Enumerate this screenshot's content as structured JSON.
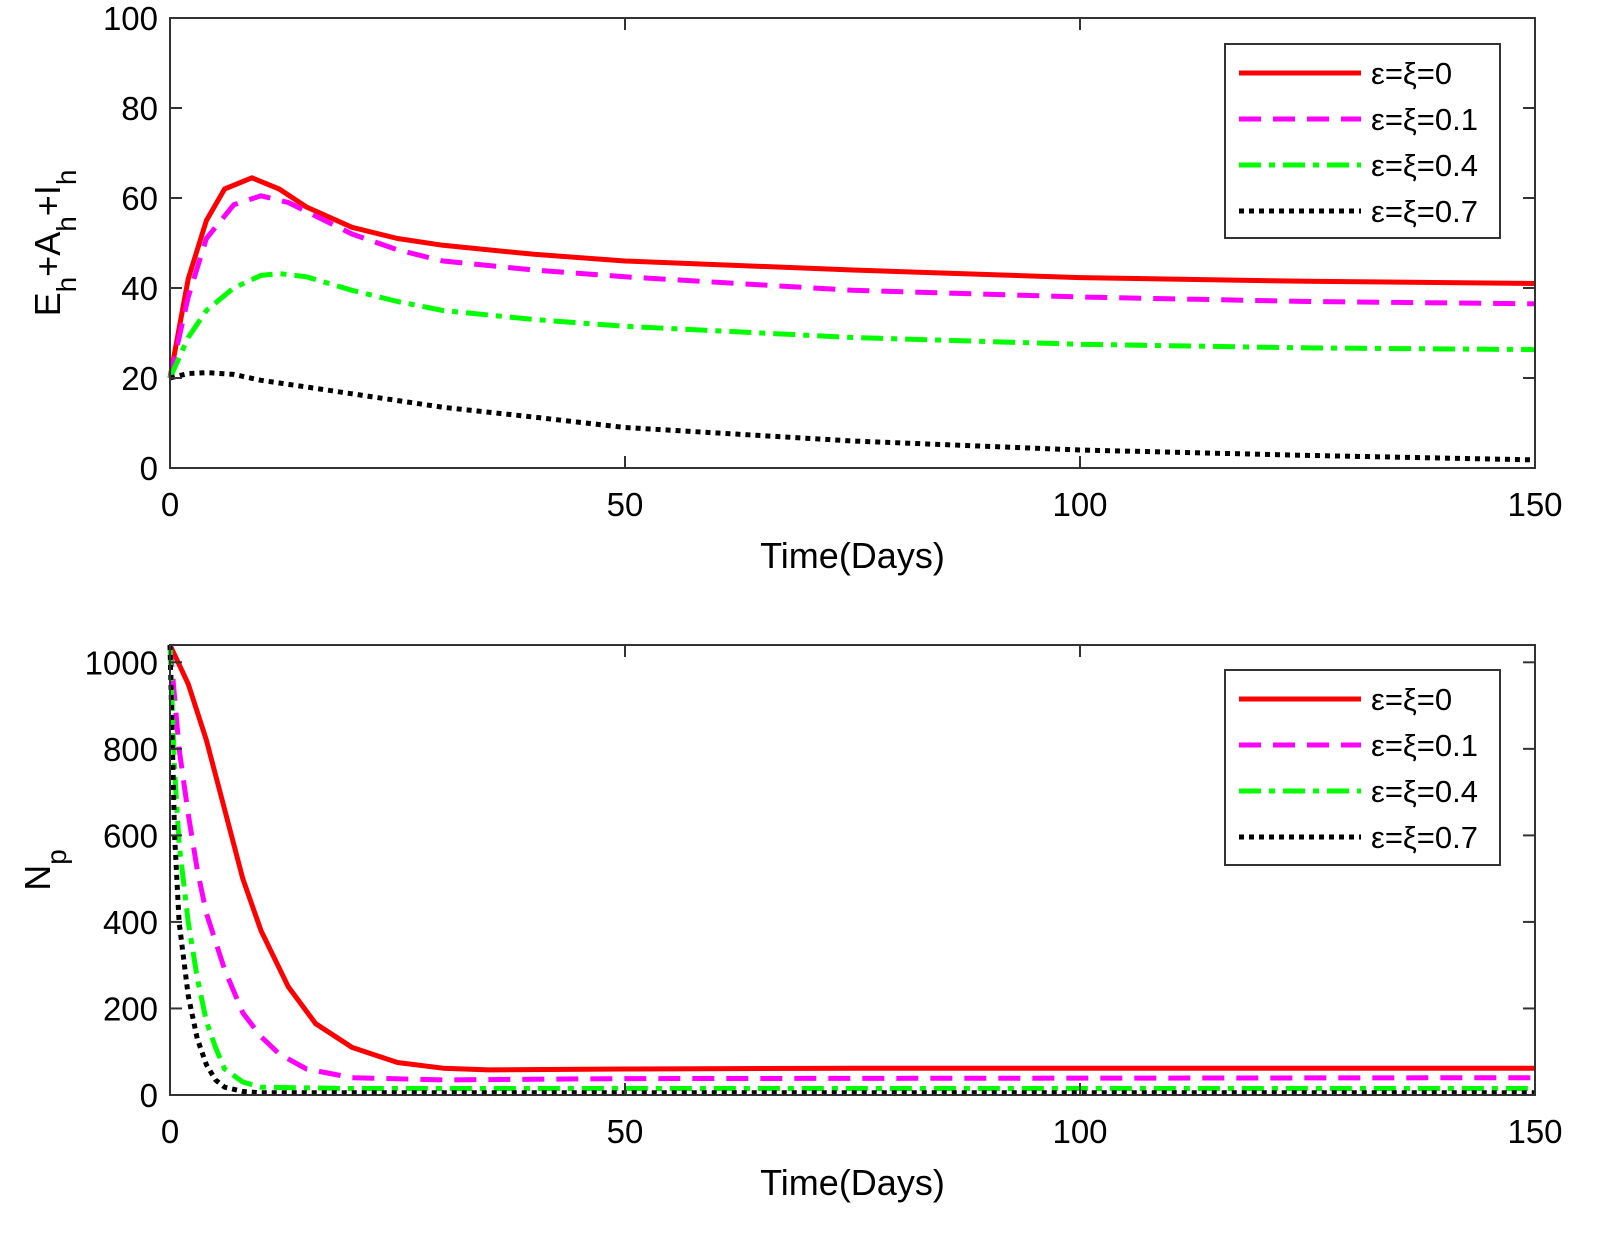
{
  "chart_data": [
    {
      "type": "line",
      "xlabel": "Time(Days)",
      "ylabel": "E_h+A_h+I_h",
      "xlim": [
        0,
        150
      ],
      "ylim": [
        0,
        100
      ],
      "xticks": [
        0,
        50,
        100,
        150
      ],
      "yticks": [
        0,
        20,
        40,
        60,
        80,
        100
      ],
      "grid": false,
      "legend_placement": "top-right",
      "series": [
        {
          "name": "ε=ξ=0",
          "color": "#ff0000",
          "style": "solid",
          "x": [
            0,
            2,
            4,
            6,
            9,
            12,
            15,
            20,
            25,
            30,
            40,
            50,
            75,
            100,
            125,
            150
          ],
          "y": [
            20,
            42,
            55,
            62,
            64.5,
            62,
            58,
            53.5,
            51,
            49.5,
            47.5,
            46,
            44,
            42.3,
            41.5,
            41
          ]
        },
        {
          "name": "ε=ξ=0.1",
          "color": "#ff00ff",
          "style": "dashed",
          "x": [
            0,
            2,
            4,
            7,
            10,
            13,
            17,
            20,
            25,
            30,
            40,
            50,
            75,
            100,
            125,
            150
          ],
          "y": [
            20,
            38,
            51,
            58.5,
            60.5,
            59,
            55,
            52,
            48.5,
            46,
            44,
            42.5,
            39.5,
            38,
            37,
            36.5
          ]
        },
        {
          "name": "ε=ξ=0.4",
          "color": "#00ff00",
          "style": "dashdot",
          "x": [
            0,
            2,
            4,
            7,
            10,
            12,
            15,
            20,
            25,
            30,
            40,
            50,
            75,
            100,
            125,
            150
          ],
          "y": [
            20,
            29,
            35,
            40,
            42.8,
            43.2,
            42.5,
            39.5,
            37,
            35,
            33,
            31.5,
            29,
            27.5,
            26.7,
            26.3
          ]
        },
        {
          "name": "ε=ξ=0.7",
          "color": "#000000",
          "style": "dotted",
          "x": [
            0,
            2,
            4,
            7,
            10,
            15,
            20,
            30,
            40,
            50,
            75,
            100,
            125,
            150
          ],
          "y": [
            20,
            21,
            21.2,
            20.8,
            19.5,
            18,
            16.5,
            13.5,
            11.3,
            9,
            6,
            4,
            2.8,
            1.8
          ]
        }
      ]
    },
    {
      "type": "line",
      "xlabel": "Time(Days)",
      "ylabel": "N_p",
      "xlim": [
        0,
        150
      ],
      "ylim": [
        0,
        1040
      ],
      "xticks": [
        0,
        50,
        100,
        150
      ],
      "yticks": [
        0,
        200,
        400,
        600,
        800,
        1000
      ],
      "grid": false,
      "legend_placement": "top-right",
      "series": [
        {
          "name": "ε=ξ=0",
          "color": "#ff0000",
          "style": "solid",
          "x": [
            0,
            2,
            4,
            6,
            8,
            10,
            13,
            16,
            20,
            25,
            30,
            35,
            50,
            75,
            150
          ],
          "y": [
            1040,
            950,
            820,
            660,
            500,
            380,
            250,
            165,
            110,
            75,
            62,
            58,
            60,
            62,
            62
          ]
        },
        {
          "name": "ε=ξ=0.1",
          "color": "#ff00ff",
          "style": "dashed",
          "x": [
            0,
            1,
            2,
            3,
            4,
            6,
            8,
            10,
            12,
            15,
            20,
            30,
            50,
            150
          ],
          "y": [
            1040,
            800,
            650,
            520,
            420,
            290,
            190,
            135,
            95,
            60,
            40,
            35,
            38,
            40
          ]
        },
        {
          "name": "ε=ξ=0.4",
          "color": "#00ff00",
          "style": "dashdot",
          "x": [
            0,
            0.5,
            1,
            2,
            3,
            4,
            5,
            6,
            8,
            10,
            20,
            150
          ],
          "y": [
            1040,
            750,
            580,
            400,
            270,
            170,
            110,
            60,
            30,
            18,
            15,
            15
          ]
        },
        {
          "name": "ε=ξ=0.7",
          "color": "#000000",
          "style": "dotted",
          "x": [
            0,
            0.5,
            1,
            2,
            3,
            4,
            5,
            6,
            8,
            10,
            150
          ],
          "y": [
            1040,
            600,
            400,
            230,
            130,
            70,
            35,
            18,
            8,
            5,
            5
          ]
        }
      ]
    }
  ]
}
